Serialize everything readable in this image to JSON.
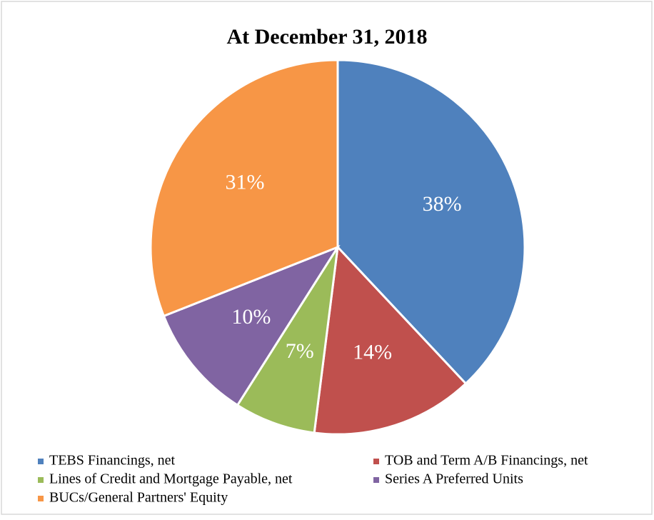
{
  "chart_data": {
    "type": "pie",
    "title": "At December 31, 2018",
    "categories": [
      "TEBS Financings, net",
      "TOB and Term A/B Financings, net",
      "Lines of Credit and Mortgage Payable, net",
      "Series A Preferred Units",
      "BUCs/General Partners' Equity"
    ],
    "values": [
      38,
      14,
      7,
      10,
      31
    ],
    "value_labels": [
      "38%",
      "14%",
      "7%",
      "10%",
      "31%"
    ],
    "colors": [
      "#4f81bd",
      "#c0504d",
      "#9bbb59",
      "#8064a2",
      "#f79646"
    ],
    "legend": "bottom"
  }
}
